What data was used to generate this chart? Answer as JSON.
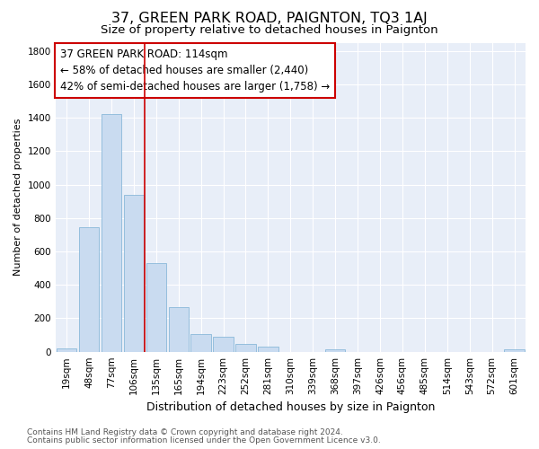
{
  "title": "37, GREEN PARK ROAD, PAIGNTON, TQ3 1AJ",
  "subtitle": "Size of property relative to detached houses in Paignton",
  "xlabel": "Distribution of detached houses by size in Paignton",
  "ylabel": "Number of detached properties",
  "footnote1": "Contains HM Land Registry data © Crown copyright and database right 2024.",
  "footnote2": "Contains public sector information licensed under the Open Government Licence v3.0.",
  "bar_labels": [
    "19sqm",
    "48sqm",
    "77sqm",
    "106sqm",
    "135sqm",
    "165sqm",
    "194sqm",
    "223sqm",
    "252sqm",
    "281sqm",
    "310sqm",
    "339sqm",
    "368sqm",
    "397sqm",
    "426sqm",
    "456sqm",
    "485sqm",
    "514sqm",
    "543sqm",
    "572sqm",
    "601sqm"
  ],
  "bar_values": [
    22,
    745,
    1420,
    940,
    530,
    265,
    105,
    90,
    48,
    28,
    0,
    0,
    15,
    0,
    0,
    0,
    0,
    0,
    0,
    0,
    14
  ],
  "bar_color": "#c9dbf0",
  "bar_edgecolor": "#7aafd4",
  "bg_color": "#e8eef8",
  "annotation_line1": "37 GREEN PARK ROAD: 114sqm",
  "annotation_line2": "← 58% of detached houses are smaller (2,440)",
  "annotation_line3": "42% of semi-detached houses are larger (1,758) →",
  "vline_x": 3.5,
  "vline_color": "#cc0000",
  "box_color": "#cc0000",
  "ylim": [
    0,
    1850
  ],
  "yticks": [
    0,
    200,
    400,
    600,
    800,
    1000,
    1200,
    1400,
    1600,
    1800
  ],
  "title_fontsize": 11.5,
  "subtitle_fontsize": 9.5,
  "annotation_fontsize": 8.5,
  "ylabel_fontsize": 8,
  "xlabel_fontsize": 9,
  "tick_fontsize": 7.5,
  "footnote_fontsize": 6.5
}
